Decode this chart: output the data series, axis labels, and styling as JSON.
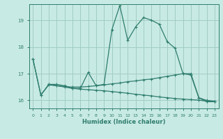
{
  "background_color": "#c8eae4",
  "grid_color": "#a0ccc4",
  "line_color": "#2e7d6e",
  "xlabel": "Humidex (Indice chaleur)",
  "xlim": [
    -0.5,
    23.5
  ],
  "ylim": [
    15.7,
    19.6
  ],
  "yticks": [
    16,
    17,
    18,
    19
  ],
  "xticks": [
    0,
    1,
    2,
    3,
    4,
    5,
    6,
    7,
    8,
    9,
    10,
    11,
    12,
    13,
    14,
    15,
    16,
    17,
    18,
    19,
    20,
    21,
    22,
    23
  ],
  "series": [
    {
      "x": [
        0,
        1,
        2,
        3,
        4,
        5,
        6,
        7,
        8,
        9,
        10,
        11,
        12,
        13,
        14,
        15,
        16,
        17,
        18,
        19,
        20,
        21,
        22,
        23
      ],
      "y": [
        17.55,
        16.2,
        16.6,
        16.6,
        16.55,
        16.45,
        16.45,
        17.05,
        16.55,
        16.6,
        18.65,
        19.55,
        18.25,
        18.75,
        19.1,
        19.0,
        18.85,
        18.2,
        17.95,
        17.0,
        17.0,
        16.1,
        15.95,
        15.95
      ]
    },
    {
      "x": [
        0,
        1,
        2,
        3,
        4,
        5,
        6,
        7,
        8,
        9,
        10,
        11,
        12,
        13,
        14,
        15,
        16,
        17,
        18,
        19,
        20,
        21,
        22,
        23
      ],
      "y": [
        17.55,
        16.2,
        16.58,
        16.55,
        16.52,
        16.5,
        16.5,
        16.52,
        16.55,
        16.58,
        16.62,
        16.65,
        16.7,
        16.73,
        16.77,
        16.8,
        16.85,
        16.9,
        16.95,
        17.0,
        16.95,
        16.1,
        16.0,
        15.97
      ]
    },
    {
      "x": [
        2,
        3,
        4,
        5,
        6,
        7,
        8,
        9,
        10,
        11,
        12,
        13,
        14,
        15,
        16,
        17,
        18,
        19,
        20,
        21,
        22,
        23
      ],
      "y": [
        16.6,
        16.55,
        16.5,
        16.45,
        16.42,
        16.4,
        16.38,
        16.36,
        16.33,
        16.3,
        16.27,
        16.23,
        16.2,
        16.17,
        16.13,
        16.1,
        16.07,
        16.05,
        16.03,
        16.01,
        15.97,
        15.97
      ]
    }
  ]
}
